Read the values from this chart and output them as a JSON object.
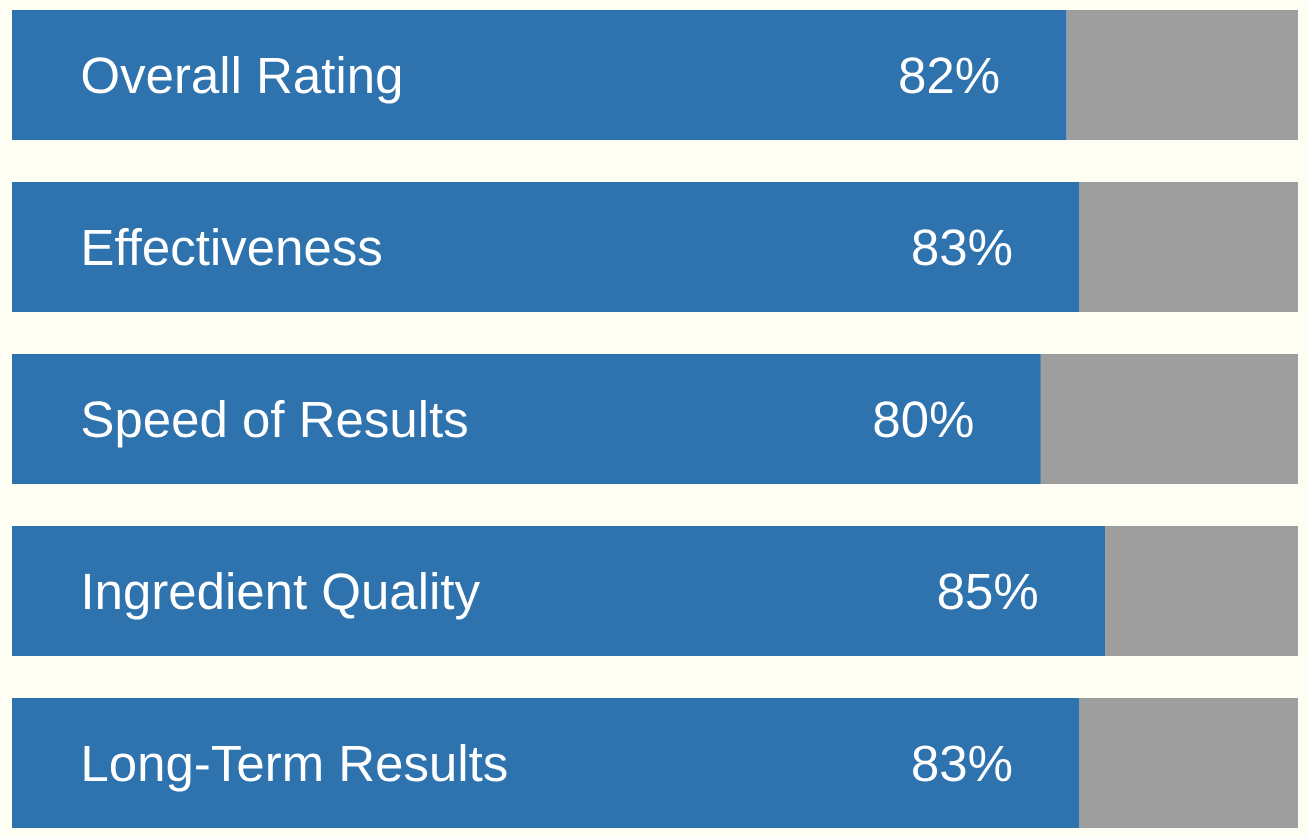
{
  "chart_data": {
    "type": "bar",
    "orientation": "horizontal",
    "stacked": true,
    "categories": [
      "Overall Rating",
      "Effectiveness",
      "Speed of Results",
      "Ingredient Quality",
      "Long-Term Results"
    ],
    "xlim": [
      0,
      100
    ],
    "series": [
      {
        "color": "#2e72ae",
        "values": [
          82,
          83,
          80,
          85,
          83
        ],
        "value_labels": [
          "82%",
          "83%",
          "80%",
          "85%",
          "83%"
        ]
      },
      {
        "color": "#9e9e9e",
        "values": [
          18,
          17,
          20,
          15,
          17
        ]
      }
    ]
  }
}
